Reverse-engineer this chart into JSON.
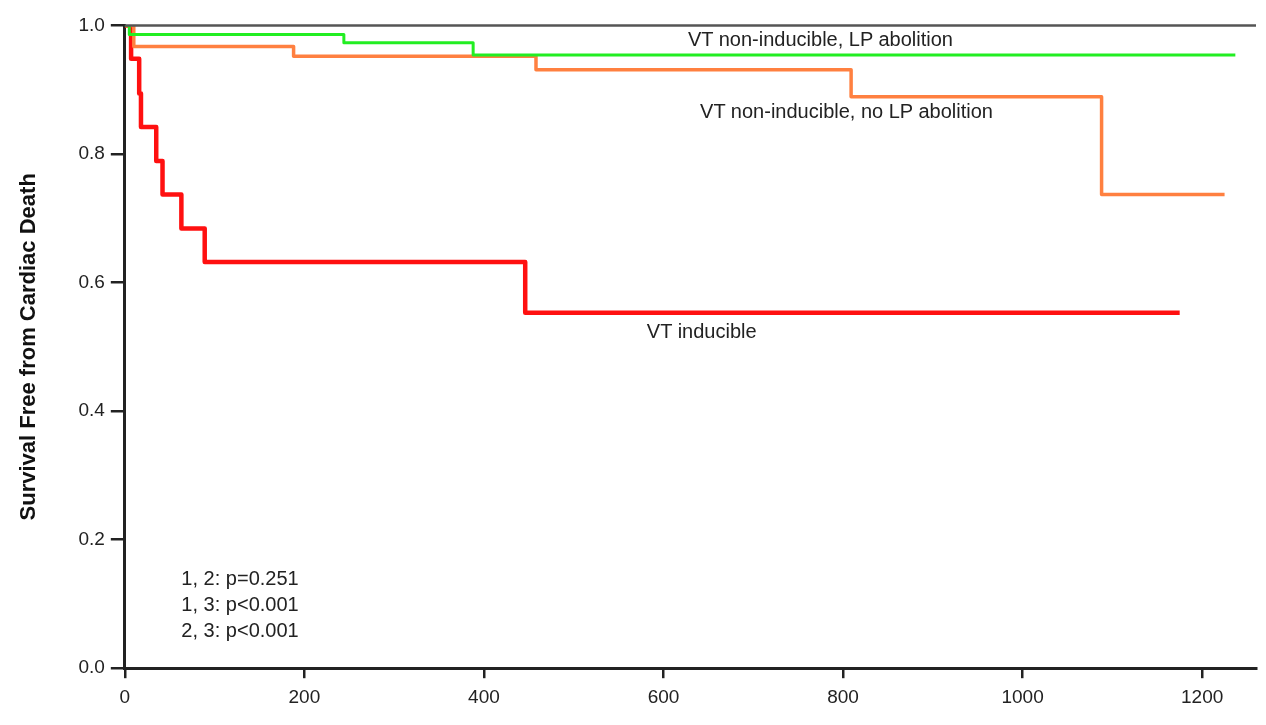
{
  "chart_data": {
    "type": "step",
    "ylabel": "Survival Free from Cardiac Death",
    "xlim": [
      0,
      1260
    ],
    "ylim": [
      0,
      1
    ],
    "xticks": [
      0,
      200,
      400,
      600,
      800,
      1000,
      1200
    ],
    "yticks": [
      {
        "value": 0,
        "label": "0.0"
      },
      {
        "value": 0.2,
        "label": "0.2"
      },
      {
        "value": 0.4,
        "label": "0.4"
      },
      {
        "value": 0.6,
        "label": "0.6"
      },
      {
        "value": 0.8,
        "label": "0.8"
      },
      {
        "value": 1,
        "label": "1.0"
      }
    ],
    "grid": false,
    "legend": false,
    "marker": "none",
    "line_style": "solid",
    "series": [
      {
        "name": "VT non-inducible, LP abolition",
        "color": "#22ee22",
        "x": [
          0,
          5,
          244,
          388,
          1237
        ],
        "values": [
          1,
          0.986,
          0.973,
          0.954,
          0.954
        ]
      },
      {
        "name": "VT non-inducible, no LP abolition",
        "color": "#ff8040",
        "x": [
          0,
          10,
          188,
          458,
          809,
          1088,
          1225
        ],
        "values": [
          1,
          0.967,
          0.952,
          0.931,
          0.889,
          0.737,
          0.737
        ]
      },
      {
        "name": "VT inducible",
        "color": "#ff1010",
        "x": [
          0,
          7,
          16,
          18,
          35,
          42,
          63,
          89,
          446,
          1175
        ],
        "values": [
          1,
          0.948,
          0.894,
          0.842,
          0.789,
          0.737,
          0.684,
          0.632,
          0.553,
          0.553
        ]
      }
    ],
    "annotations": [
      "1, 2: p=0.251",
      "1, 3: p<0.001",
      "2, 3: p<0.001"
    ]
  }
}
